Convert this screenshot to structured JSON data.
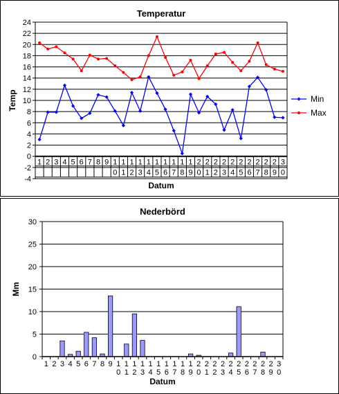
{
  "chart_data": [
    {
      "type": "line",
      "title": "Temperatur",
      "xlabel": "Datum",
      "ylabel": "Temp",
      "ylim": [
        -4,
        24
      ],
      "yticks": [
        -4,
        -2,
        0,
        2,
        4,
        6,
        8,
        10,
        12,
        14,
        16,
        18,
        20,
        22,
        24
      ],
      "grid": "horizontal",
      "legend": "right",
      "categories": [
        "1",
        "2",
        "3",
        "4",
        "5",
        "6",
        "7",
        "8",
        "9",
        "10",
        "11",
        "12",
        "13",
        "14",
        "15",
        "16",
        "17",
        "18",
        "19",
        "20",
        "21",
        "22",
        "23",
        "24",
        "25",
        "26",
        "27",
        "28",
        "29",
        "30"
      ],
      "series": [
        {
          "name": "Min",
          "color": "#0000ff",
          "marker": "diamond",
          "values": [
            3.0,
            7.9,
            7.9,
            12.7,
            9.0,
            6.8,
            7.7,
            11.0,
            10.6,
            8.1,
            5.5,
            11.4,
            8.1,
            14.2,
            11.3,
            8.4,
            4.6,
            0.5,
            11.1,
            7.8,
            10.7,
            9.3,
            4.7,
            8.3,
            3.2,
            12.5,
            14.1,
            11.9,
            7.0,
            6.9
          ]
        },
        {
          "name": "Max",
          "color": "#ff0000",
          "marker": "dot",
          "values": [
            20.3,
            19.2,
            19.6,
            18.5,
            17.4,
            15.3,
            18.1,
            17.4,
            17.5,
            16.2,
            15.0,
            13.7,
            14.2,
            18.0,
            21.4,
            17.7,
            14.5,
            15.1,
            17.2,
            13.9,
            16.2,
            18.3,
            18.6,
            16.8,
            15.3,
            17.0,
            20.3,
            16.4,
            15.6,
            15.2
          ]
        }
      ]
    },
    {
      "type": "bar",
      "title": "Nederbörd",
      "xlabel": "Datum",
      "ylabel": "Mm",
      "ylim": [
        0,
        30
      ],
      "yticks": [
        0,
        5,
        10,
        15,
        20,
        25,
        30
      ],
      "grid": "horizontal",
      "bar_color": "#9999ff",
      "categories": [
        "1",
        "2",
        "3",
        "4",
        "5",
        "6",
        "7",
        "8",
        "9",
        "10",
        "11",
        "12",
        "13",
        "14",
        "15",
        "16",
        "17",
        "18",
        "19",
        "20",
        "21",
        "22",
        "23",
        "24",
        "25",
        "26",
        "27",
        "28",
        "29",
        "30"
      ],
      "values": [
        0,
        0,
        3.5,
        0.5,
        1.2,
        5.4,
        4.2,
        0.6,
        13.5,
        0,
        2.8,
        9.5,
        3.6,
        0,
        0,
        0,
        0,
        0,
        0.6,
        0.3,
        0,
        0,
        0,
        0.8,
        11.1,
        0,
        0,
        1.0,
        0,
        0
      ]
    }
  ]
}
